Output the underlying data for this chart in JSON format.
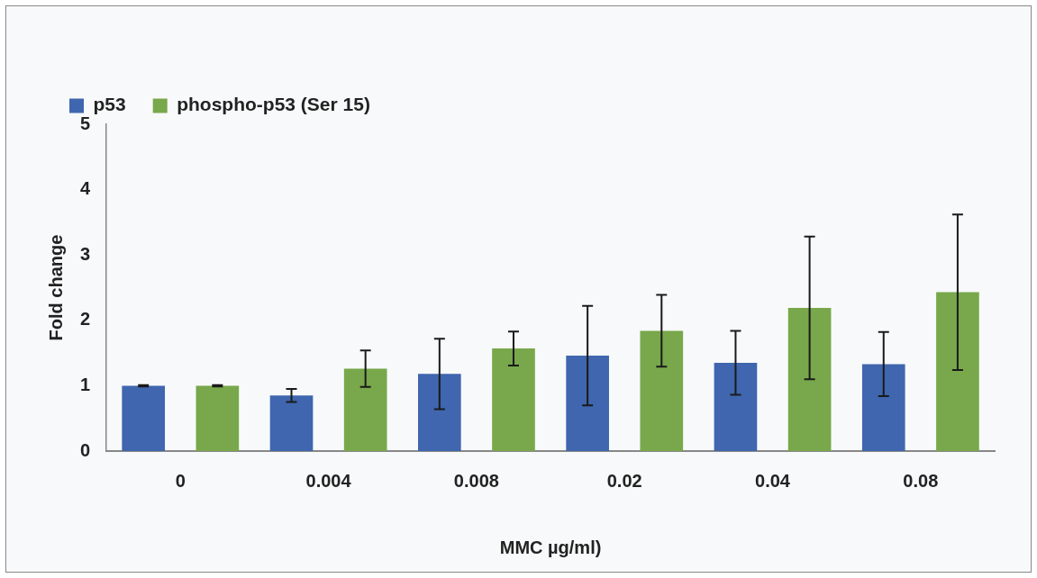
{
  "chart_data": {
    "type": "bar",
    "xlabel": "MMC µg/ml)",
    "ylabel": "Fold change",
    "categories": [
      "0",
      "0.004",
      "0.008",
      "0.02",
      "0.04",
      "0.08"
    ],
    "series": [
      {
        "name": "p53",
        "color": "#3f66ae",
        "values": [
          1.0,
          0.85,
          1.18,
          1.46,
          1.35,
          1.33
        ],
        "errors": [
          0.01,
          0.1,
          0.54,
          0.76,
          0.49,
          0.49
        ]
      },
      {
        "name": "phospho-p53 (Ser 15)",
        "color": "#78a84b",
        "values": [
          1.0,
          1.26,
          1.57,
          1.84,
          2.19,
          2.43
        ],
        "errors": [
          0.01,
          0.28,
          0.26,
          0.55,
          1.09,
          1.19
        ]
      }
    ],
    "ylim": [
      0,
      5
    ],
    "yticks": [
      0,
      1,
      2,
      3,
      4,
      5
    ],
    "grid": false,
    "legend": "top left"
  }
}
